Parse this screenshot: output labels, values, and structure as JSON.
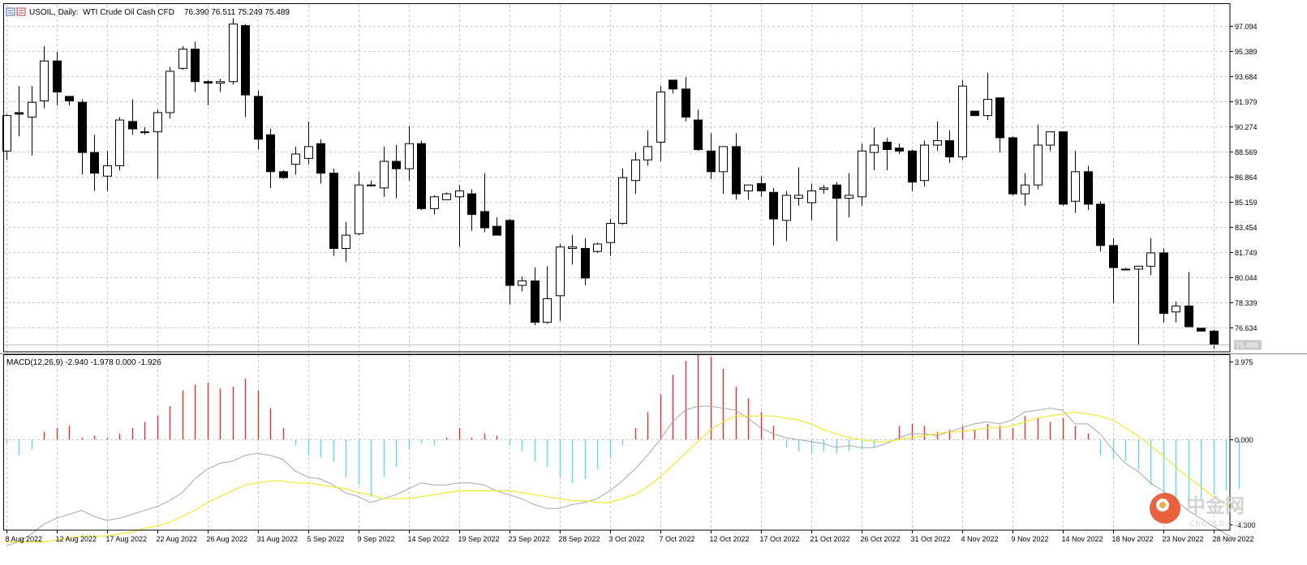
{
  "chart_data": [
    {
      "type": "candlestick",
      "symbol": "USOIL",
      "timeframe": "Daily",
      "description": "WTI Crude Oil Cash CFD",
      "header_label": "USOIL, Daily:  WTI Crude Oil Cash CFD",
      "ohlc_label": "76.390 76.511 75.249 75.489",
      "last_price_label": "75.489",
      "last_price": 75.489,
      "ylim": [
        75.0,
        98.5
      ],
      "y_ticks": [
        97.094,
        95.389,
        93.684,
        91.979,
        90.274,
        88.569,
        86.864,
        85.159,
        83.454,
        81.749,
        80.044,
        78.339,
        76.634
      ],
      "y_tick_labels": [
        "97.094",
        "95.389",
        "93.684",
        "91.979",
        "90.274",
        "88.569",
        "86.864",
        "85.159",
        "83.454",
        "81.749",
        "80.044",
        "78.339",
        "76.634"
      ],
      "grid": true,
      "candles": [
        {
          "o": 88.6,
          "h": 91.1,
          "l": 88.0,
          "c": 91.0
        },
        {
          "o": 91.2,
          "h": 93.0,
          "l": 89.6,
          "c": 91.1
        },
        {
          "o": 90.9,
          "h": 93.0,
          "l": 88.3,
          "c": 91.9
        },
        {
          "o": 92.0,
          "h": 95.7,
          "l": 91.5,
          "c": 94.7
        },
        {
          "o": 94.7,
          "h": 95.3,
          "l": 91.7,
          "c": 92.6
        },
        {
          "o": 92.3,
          "h": 92.2,
          "l": 91.7,
          "c": 92.0
        },
        {
          "o": 91.9,
          "h": 92.1,
          "l": 87.0,
          "c": 88.5
        },
        {
          "o": 88.5,
          "h": 89.7,
          "l": 85.9,
          "c": 87.1
        },
        {
          "o": 86.9,
          "h": 88.6,
          "l": 85.9,
          "c": 87.6
        },
        {
          "o": 87.6,
          "h": 90.9,
          "l": 87.3,
          "c": 90.7
        },
        {
          "o": 90.6,
          "h": 92.1,
          "l": 89.7,
          "c": 90.1
        },
        {
          "o": 89.9,
          "h": 90.2,
          "l": 89.7,
          "c": 89.9
        },
        {
          "o": 89.9,
          "h": 91.4,
          "l": 86.7,
          "c": 91.2
        },
        {
          "o": 91.2,
          "h": 94.3,
          "l": 90.8,
          "c": 94.0
        },
        {
          "o": 94.2,
          "h": 95.7,
          "l": 94.1,
          "c": 95.5
        },
        {
          "o": 95.5,
          "h": 96.0,
          "l": 92.6,
          "c": 93.3
        },
        {
          "o": 93.3,
          "h": 93.4,
          "l": 91.7,
          "c": 93.2
        },
        {
          "o": 93.2,
          "h": 93.5,
          "l": 92.6,
          "c": 93.3
        },
        {
          "o": 93.3,
          "h": 97.6,
          "l": 93.1,
          "c": 97.2
        },
        {
          "o": 97.1,
          "h": 97.2,
          "l": 90.9,
          "c": 92.4
        },
        {
          "o": 92.3,
          "h": 92.7,
          "l": 88.7,
          "c": 89.4
        },
        {
          "o": 89.7,
          "h": 90.1,
          "l": 86.1,
          "c": 87.2
        },
        {
          "o": 87.2,
          "h": 87.3,
          "l": 86.7,
          "c": 86.8
        },
        {
          "o": 87.7,
          "h": 88.9,
          "l": 87.0,
          "c": 88.4
        },
        {
          "o": 88.1,
          "h": 90.6,
          "l": 87.7,
          "c": 88.9
        },
        {
          "o": 89.1,
          "h": 89.4,
          "l": 86.4,
          "c": 87.1
        },
        {
          "o": 87.1,
          "h": 87.4,
          "l": 81.5,
          "c": 82.0
        },
        {
          "o": 82.0,
          "h": 83.8,
          "l": 81.1,
          "c": 82.9
        },
        {
          "o": 83.0,
          "h": 87.2,
          "l": 82.9,
          "c": 86.3
        },
        {
          "o": 86.3,
          "h": 86.6,
          "l": 86.2,
          "c": 86.3
        },
        {
          "o": 86.1,
          "h": 88.9,
          "l": 85.5,
          "c": 87.9
        },
        {
          "o": 87.9,
          "h": 89.0,
          "l": 85.4,
          "c": 87.4
        },
        {
          "o": 87.4,
          "h": 90.3,
          "l": 86.6,
          "c": 89.1
        },
        {
          "o": 89.1,
          "h": 89.3,
          "l": 84.6,
          "c": 84.7
        },
        {
          "o": 84.7,
          "h": 85.6,
          "l": 84.3,
          "c": 85.5
        },
        {
          "o": 85.3,
          "h": 85.8,
          "l": 85.3,
          "c": 85.7
        },
        {
          "o": 85.5,
          "h": 86.3,
          "l": 82.1,
          "c": 85.9
        },
        {
          "o": 85.7,
          "h": 86.0,
          "l": 83.2,
          "c": 84.3
        },
        {
          "o": 84.5,
          "h": 87.1,
          "l": 83.1,
          "c": 83.4
        },
        {
          "o": 83.5,
          "h": 84.1,
          "l": 82.9,
          "c": 82.9
        },
        {
          "o": 83.9,
          "h": 84.0,
          "l": 78.2,
          "c": 79.5
        },
        {
          "o": 79.5,
          "h": 80.1,
          "l": 79.1,
          "c": 79.8
        },
        {
          "o": 79.8,
          "h": 80.7,
          "l": 76.8,
          "c": 77.0
        },
        {
          "o": 77.0,
          "h": 80.8,
          "l": 76.9,
          "c": 78.6
        },
        {
          "o": 78.8,
          "h": 82.3,
          "l": 77.1,
          "c": 82.1
        },
        {
          "o": 82.0,
          "h": 82.9,
          "l": 80.9,
          "c": 82.1
        },
        {
          "o": 82.0,
          "h": 82.7,
          "l": 79.5,
          "c": 80.0
        },
        {
          "o": 81.8,
          "h": 82.4,
          "l": 81.7,
          "c": 82.3
        },
        {
          "o": 82.4,
          "h": 84.0,
          "l": 81.5,
          "c": 83.7
        },
        {
          "o": 83.7,
          "h": 87.4,
          "l": 83.6,
          "c": 86.8
        },
        {
          "o": 86.6,
          "h": 88.5,
          "l": 85.7,
          "c": 88.0
        },
        {
          "o": 88.0,
          "h": 90.0,
          "l": 87.6,
          "c": 88.9
        },
        {
          "o": 89.2,
          "h": 93.0,
          "l": 87.9,
          "c": 92.6
        },
        {
          "o": 93.4,
          "h": 93.4,
          "l": 92.5,
          "c": 92.8
        },
        {
          "o": 92.8,
          "h": 93.6,
          "l": 90.6,
          "c": 90.9
        },
        {
          "o": 90.7,
          "h": 91.4,
          "l": 88.6,
          "c": 88.7
        },
        {
          "o": 88.6,
          "h": 89.8,
          "l": 86.7,
          "c": 87.2
        },
        {
          "o": 87.2,
          "h": 88.9,
          "l": 85.7,
          "c": 88.9
        },
        {
          "o": 88.9,
          "h": 89.8,
          "l": 85.3,
          "c": 85.7
        },
        {
          "o": 85.9,
          "h": 86.3,
          "l": 85.3,
          "c": 86.3
        },
        {
          "o": 86.4,
          "h": 86.9,
          "l": 85.5,
          "c": 85.9
        },
        {
          "o": 85.8,
          "h": 86.1,
          "l": 82.2,
          "c": 84.0
        },
        {
          "o": 83.9,
          "h": 85.9,
          "l": 82.5,
          "c": 85.6
        },
        {
          "o": 85.4,
          "h": 87.5,
          "l": 84.9,
          "c": 85.6
        },
        {
          "o": 85.1,
          "h": 86.4,
          "l": 83.9,
          "c": 85.9
        },
        {
          "o": 86.0,
          "h": 86.3,
          "l": 85.7,
          "c": 86.1
        },
        {
          "o": 86.3,
          "h": 86.5,
          "l": 82.5,
          "c": 85.4
        },
        {
          "o": 85.4,
          "h": 87.1,
          "l": 84.1,
          "c": 85.6
        },
        {
          "o": 85.5,
          "h": 89.1,
          "l": 84.9,
          "c": 88.6
        },
        {
          "o": 88.5,
          "h": 90.2,
          "l": 87.3,
          "c": 89.0
        },
        {
          "o": 89.2,
          "h": 89.5,
          "l": 87.3,
          "c": 88.7
        },
        {
          "o": 88.8,
          "h": 89.1,
          "l": 88.4,
          "c": 88.6
        },
        {
          "o": 88.6,
          "h": 88.7,
          "l": 85.9,
          "c": 86.5
        },
        {
          "o": 86.6,
          "h": 89.3,
          "l": 86.2,
          "c": 89.0
        },
        {
          "o": 89.0,
          "h": 90.6,
          "l": 88.6,
          "c": 89.3
        },
        {
          "o": 89.3,
          "h": 90.0,
          "l": 87.8,
          "c": 88.2
        },
        {
          "o": 88.2,
          "h": 93.4,
          "l": 88.0,
          "c": 93.0
        },
        {
          "o": 91.3,
          "h": 91.3,
          "l": 91.0,
          "c": 91.0
        },
        {
          "o": 91.0,
          "h": 93.9,
          "l": 90.7,
          "c": 92.1
        },
        {
          "o": 92.2,
          "h": 92.2,
          "l": 88.5,
          "c": 89.5
        },
        {
          "o": 89.5,
          "h": 89.6,
          "l": 85.6,
          "c": 85.7
        },
        {
          "o": 85.7,
          "h": 87.1,
          "l": 84.9,
          "c": 86.3
        },
        {
          "o": 86.3,
          "h": 90.4,
          "l": 86.0,
          "c": 89.0
        },
        {
          "o": 89.0,
          "h": 89.9,
          "l": 88.6,
          "c": 89.9
        },
        {
          "o": 89.9,
          "h": 89.8,
          "l": 84.9,
          "c": 85.0
        },
        {
          "o": 85.2,
          "h": 88.6,
          "l": 84.4,
          "c": 87.2
        },
        {
          "o": 87.2,
          "h": 87.6,
          "l": 84.6,
          "c": 85.0
        },
        {
          "o": 85.0,
          "h": 85.2,
          "l": 81.8,
          "c": 82.2
        },
        {
          "o": 82.2,
          "h": 82.7,
          "l": 78.3,
          "c": 80.7
        },
        {
          "o": 80.6,
          "h": 80.7,
          "l": 80.6,
          "c": 80.6
        },
        {
          "o": 80.6,
          "h": 80.8,
          "l": 75.5,
          "c": 80.8
        },
        {
          "o": 80.8,
          "h": 82.7,
          "l": 80.2,
          "c": 81.7
        },
        {
          "o": 81.7,
          "h": 82.0,
          "l": 77.0,
          "c": 77.6
        },
        {
          "o": 77.7,
          "h": 78.4,
          "l": 77.0,
          "c": 78.1
        },
        {
          "o": 78.1,
          "h": 80.4,
          "l": 76.7,
          "c": 76.7
        },
        {
          "o": 76.6,
          "h": 76.6,
          "l": 76.4,
          "c": 76.4
        },
        {
          "o": 76.4,
          "h": 76.5,
          "l": 75.2,
          "c": 75.5
        }
      ]
    },
    {
      "type": "macd",
      "label": "MACD(12,26,9) -2.940 -1.978 0.000 -1.926",
      "ylim": [
        -4.6,
        4.3
      ],
      "y_tick_labels": [
        "3.975",
        "0.000",
        "-4.300"
      ],
      "y_ticks": [
        3.975,
        0.0,
        -4.3
      ],
      "histogram": [
        -0.15,
        -0.8,
        -0.5,
        0.4,
        0.6,
        0.7,
        0.1,
        0.2,
        0.1,
        0.3,
        0.6,
        0.9,
        1.2,
        1.7,
        2.5,
        2.8,
        2.9,
        2.6,
        2.7,
        3.1,
        2.5,
        1.6,
        0.6,
        -0.3,
        -0.8,
        -0.9,
        -1.1,
        -1.9,
        -2.3,
        -2.9,
        -1.9,
        -1.4,
        -0.5,
        -0.2,
        -0.3,
        0.1,
        0.6,
        0.1,
        0.3,
        0.2,
        -0.3,
        -0.6,
        -1.1,
        -1.4,
        -1.9,
        -2.2,
        -2.0,
        -1.5,
        -0.9,
        -0.3,
        0.6,
        1.4,
        2.3,
        3.3,
        4.0,
        4.3,
        4.2,
        3.6,
        2.7,
        2.1,
        1.4,
        0.7,
        -0.4,
        -0.6,
        -0.7,
        -0.6,
        -0.7,
        -0.6,
        -0.5,
        -0.4,
        0.0,
        0.7,
        0.8,
        0.7,
        0.4,
        0.5,
        0.7,
        0.5,
        0.8,
        0.7,
        0.6,
        1.2,
        1.1,
        0.9,
        1.1,
        0.7,
        0.3,
        -0.8,
        -1.0,
        -1.1,
        -1.5,
        -2.3,
        -2.9,
        -3.3,
        -3.3,
        -3.1,
        -2.8,
        -2.6,
        -2.5
      ],
      "macd_line": [
        -5.4,
        -5.2,
        -4.8,
        -4.3,
        -4.0,
        -3.8,
        -3.6,
        -3.9,
        -4.1,
        -4.0,
        -3.8,
        -3.6,
        -3.4,
        -3.1,
        -2.7,
        -2.0,
        -1.5,
        -1.2,
        -1.1,
        -0.8,
        -0.7,
        -0.8,
        -1.0,
        -1.6,
        -1.9,
        -2.0,
        -2.3,
        -2.7,
        -2.9,
        -3.2,
        -3.0,
        -2.8,
        -2.5,
        -2.2,
        -2.3,
        -2.3,
        -2.2,
        -2.2,
        -2.3,
        -2.6,
        -2.8,
        -3.0,
        -3.3,
        -3.5,
        -3.5,
        -3.3,
        -3.2,
        -3.0,
        -2.6,
        -2.1,
        -1.5,
        -0.8,
        0.0,
        0.9,
        1.5,
        1.7,
        1.7,
        1.6,
        1.5,
        1.1,
        0.6,
        0.3,
        0.1,
        0.0,
        -0.1,
        -0.2,
        -0.4,
        -0.3,
        -0.4,
        -0.4,
        -0.2,
        0.1,
        0.3,
        0.3,
        0.2,
        0.4,
        0.6,
        0.8,
        0.9,
        0.8,
        1.0,
        1.4,
        1.5,
        1.6,
        1.5,
        0.8,
        0.8,
        0.3,
        -0.5,
        -1.2,
        -1.6,
        -2.2,
        -2.6,
        -3.1,
        -3.6,
        -4.0,
        -4.4,
        -4.8,
        -5.1
      ],
      "signal_line": [
        -5.2,
        -5.2,
        -5.2,
        -5.2,
        -5.1,
        -5.0,
        -4.9,
        -4.9,
        -4.9,
        -4.8,
        -4.7,
        -4.5,
        -4.4,
        -4.2,
        -3.9,
        -3.6,
        -3.2,
        -2.9,
        -2.6,
        -2.3,
        -2.2,
        -2.1,
        -2.1,
        -2.2,
        -2.2,
        -2.3,
        -2.4,
        -2.5,
        -2.7,
        -2.8,
        -3.0,
        -3.0,
        -3.0,
        -2.9,
        -2.8,
        -2.7,
        -2.6,
        -2.6,
        -2.6,
        -2.6,
        -2.6,
        -2.7,
        -2.8,
        -2.9,
        -3.0,
        -3.1,
        -3.1,
        -3.2,
        -3.2,
        -3.0,
        -2.8,
        -2.4,
        -1.9,
        -1.3,
        -0.7,
        -0.1,
        0.5,
        0.9,
        1.2,
        1.2,
        1.2,
        1.2,
        1.1,
        1.0,
        0.8,
        0.5,
        0.3,
        0.1,
        0.0,
        -0.1,
        -0.1,
        0.0,
        0.1,
        0.2,
        0.3,
        0.4,
        0.4,
        0.5,
        0.6,
        0.6,
        0.7,
        0.9,
        1.1,
        1.2,
        1.3,
        1.4,
        1.3,
        1.2,
        1.0,
        0.6,
        0.2,
        -0.3,
        -0.8,
        -1.4,
        -1.9,
        -2.4,
        -2.9,
        -3.3,
        -3.6
      ]
    }
  ],
  "x_axis": {
    "labels": [
      "8 Aug 2022",
      "12 Aug 2022",
      "17 Aug 2022",
      "22 Aug 2022",
      "26 Aug 2022",
      "31 Aug 2022",
      "5 Sep 2022",
      "9 Sep 2022",
      "14 Sep 2022",
      "19 Sep 2022",
      "23 Sep 2022",
      "28 Sep 2022",
      "3 Oct 2022",
      "7 Oct 2022",
      "12 Oct 2022",
      "17 Oct 2022",
      "21 Oct 2022",
      "26 Oct 2022",
      "31 Oct 2022",
      "4 Nov 2022",
      "9 Nov 2022",
      "14 Nov 2022",
      "18 Nov 2022",
      "23 Nov 2022",
      "28 Nov 2022"
    ],
    "label_candle_index": [
      0,
      4,
      8,
      12,
      16,
      20,
      24,
      28,
      32,
      36,
      40,
      44,
      48,
      52,
      56,
      60,
      64,
      68,
      72,
      76,
      80,
      84,
      88,
      92,
      96
    ]
  },
  "colors": {
    "bull_candle": "#ffffff",
    "bear_candle": "#000000",
    "candle_border": "#000000",
    "histogram_positive": "#e8302a",
    "histogram_negative": "#5fd7e8",
    "macd_line": "#a8a8a8",
    "signal_line": "#f0ea2a",
    "grid": "#c8c8c8",
    "frame": "#000000",
    "watermark": "#e8502a"
  },
  "watermark": {
    "text_cn": "中金网",
    "text_en": "CNGOLD.COM"
  }
}
